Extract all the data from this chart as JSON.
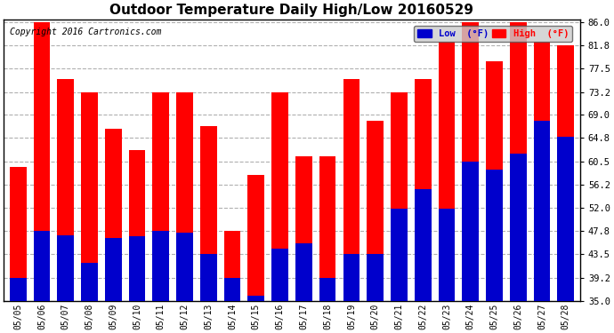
{
  "title": "Outdoor Temperature Daily High/Low 20160529",
  "copyright": "Copyright 2016 Cartronics.com",
  "dates": [
    "05/05",
    "05/06",
    "05/07",
    "05/08",
    "05/09",
    "05/10",
    "05/11",
    "05/12",
    "05/13",
    "05/14",
    "05/15",
    "05/16",
    "05/17",
    "05/18",
    "05/19",
    "05/20",
    "05/21",
    "05/22",
    "05/23",
    "05/24",
    "05/25",
    "05/26",
    "05/27",
    "05/28"
  ],
  "highs": [
    59.5,
    86.0,
    75.5,
    73.2,
    66.5,
    62.5,
    73.2,
    73.2,
    67.0,
    47.8,
    58.0,
    73.2,
    61.5,
    61.5,
    75.5,
    68.0,
    73.2,
    75.5,
    82.4,
    86.0,
    78.8,
    86.0,
    82.4,
    81.8
  ],
  "lows": [
    39.2,
    47.8,
    47.0,
    42.0,
    46.5,
    46.8,
    47.8,
    47.5,
    43.5,
    39.2,
    36.0,
    44.5,
    45.5,
    39.2,
    43.5,
    43.5,
    51.8,
    55.5,
    51.8,
    60.5,
    59.0,
    62.0,
    68.0,
    65.0
  ],
  "ylim": [
    35.0,
    86.5
  ],
  "yticks": [
    35.0,
    39.2,
    43.5,
    47.8,
    52.0,
    56.2,
    60.5,
    64.8,
    69.0,
    73.2,
    77.5,
    81.8,
    86.0
  ],
  "high_color": "#ff0000",
  "low_color": "#0000cc",
  "bg_color": "#ffffff",
  "grid_color": "#b0b0b0",
  "title_fontsize": 11,
  "copyright_fontsize": 7,
  "bar_width": 0.7
}
